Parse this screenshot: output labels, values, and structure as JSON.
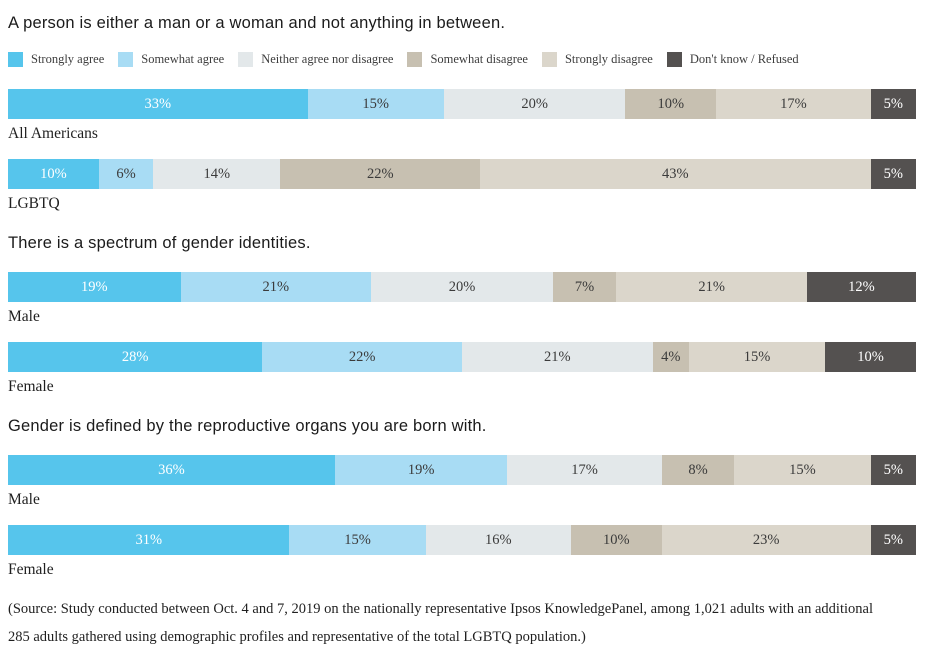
{
  "page": {
    "background": "#ffffff",
    "source_note": "(Source: Study conducted between Oct. 4 and 7, 2019 on the nationally representative Ipsos KnowledgePanel, among 1,021 adults with an additional 285 adults gathered using demographic profiles and representative of the total LGBTQ population.)"
  },
  "legend": {
    "position": "top",
    "items": [
      {
        "label": "Strongly agree",
        "color": "#56C5EC",
        "value_text_color": "#ffffff"
      },
      {
        "label": "Somewhat agree",
        "color": "#A8DCF4",
        "value_text_color": "#3b3b3b"
      },
      {
        "label": "Neither agree nor disagree",
        "color": "#E3E8EA",
        "value_text_color": "#3b3b3b"
      },
      {
        "label": "Somewhat disagree",
        "color": "#C7C0B1",
        "value_text_color": "#3b3b3b"
      },
      {
        "label": "Strongly disagree",
        "color": "#DBD6CB",
        "value_text_color": "#3b3b3b"
      },
      {
        "label": "Don't know / Refused",
        "color": "#545150",
        "value_text_color": "#ffffff"
      }
    ]
  },
  "chart_data": [
    {
      "type": "bar",
      "subtype": "horizontal-stacked-100",
      "title": "A person is either a man or a woman and not anything in between.",
      "unit": "%",
      "xlim": [
        0,
        100
      ],
      "grid": false,
      "legend_position": "top",
      "categories": [
        "All Americans",
        "LGBTQ"
      ],
      "series": [
        {
          "name": "Strongly agree",
          "values": [
            33,
            10
          ]
        },
        {
          "name": "Somewhat agree",
          "values": [
            15,
            6
          ]
        },
        {
          "name": "Neither agree nor disagree",
          "values": [
            20,
            14
          ]
        },
        {
          "name": "Somewhat disagree",
          "values": [
            10,
            22
          ]
        },
        {
          "name": "Strongly disagree",
          "values": [
            17,
            43
          ]
        },
        {
          "name": "Don't know / Refused",
          "values": [
            5,
            5
          ]
        }
      ]
    },
    {
      "type": "bar",
      "subtype": "horizontal-stacked-100",
      "title": "There is a spectrum of gender identities.",
      "unit": "%",
      "xlim": [
        0,
        100
      ],
      "grid": false,
      "categories": [
        "Male",
        "Female"
      ],
      "series": [
        {
          "name": "Strongly agree",
          "values": [
            19,
            28
          ]
        },
        {
          "name": "Somewhat agree",
          "values": [
            21,
            22
          ]
        },
        {
          "name": "Neither agree nor disagree",
          "values": [
            20,
            21
          ]
        },
        {
          "name": "Somewhat disagree",
          "values": [
            7,
            4
          ]
        },
        {
          "name": "Strongly disagree",
          "values": [
            21,
            15
          ]
        },
        {
          "name": "Don't know / Refused",
          "values": [
            12,
            10
          ]
        }
      ]
    },
    {
      "type": "bar",
      "subtype": "horizontal-stacked-100",
      "title": "Gender is defined by the reproductive organs you are born with.",
      "unit": "%",
      "xlim": [
        0,
        100
      ],
      "grid": false,
      "categories": [
        "Male",
        "Female"
      ],
      "series": [
        {
          "name": "Strongly agree",
          "values": [
            36,
            31
          ]
        },
        {
          "name": "Somewhat agree",
          "values": [
            19,
            15
          ]
        },
        {
          "name": "Neither agree nor disagree",
          "values": [
            17,
            16
          ]
        },
        {
          "name": "Somewhat disagree",
          "values": [
            8,
            10
          ]
        },
        {
          "name": "Strongly disagree",
          "values": [
            15,
            23
          ]
        },
        {
          "name": "Don't know / Refused",
          "values": [
            5,
            5
          ]
        }
      ]
    }
  ]
}
